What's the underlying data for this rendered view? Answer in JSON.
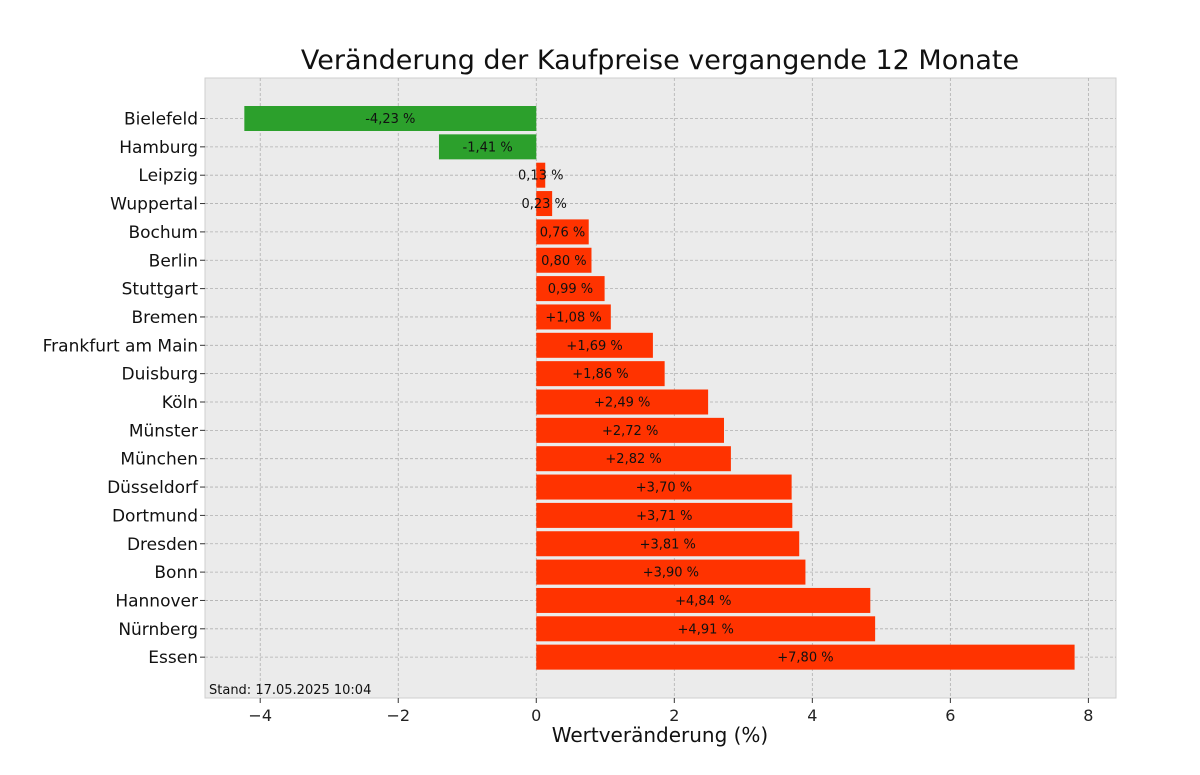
{
  "chart_data": {
    "type": "bar",
    "orientation": "horizontal",
    "title": "Veränderung der Kaufpreise vergangende 12 Monate",
    "xlabel": "Wertveränderung (%)",
    "ylabel": "",
    "xlim": [
      -4.8,
      8.4
    ],
    "xticks": [
      -4,
      -2,
      0,
      2,
      4,
      6,
      8
    ],
    "xtick_labels": [
      "−4",
      "−2",
      "0",
      "2",
      "4",
      "6",
      "8"
    ],
    "grid": true,
    "note": "Stand: 17.05.2025 10:04",
    "colors": {
      "negative": "#2ca02c",
      "positive": "#ff3300",
      "background": "#ebebeb"
    },
    "categories": [
      "Bielefeld",
      "Hamburg",
      "Leipzig",
      "Wuppertal",
      "Bochum",
      "Berlin",
      "Stuttgart",
      "Bremen",
      "Frankfurt am Main",
      "Duisburg",
      "Köln",
      "Münster",
      "München",
      "Düsseldorf",
      "Dortmund",
      "Dresden",
      "Bonn",
      "Hannover",
      "Nürnberg",
      "Essen"
    ],
    "values": [
      -4.23,
      -1.41,
      0.13,
      0.23,
      0.76,
      0.8,
      0.99,
      1.08,
      1.69,
      1.86,
      2.49,
      2.72,
      2.82,
      3.7,
      3.71,
      3.81,
      3.9,
      4.84,
      4.91,
      7.8
    ],
    "labels": [
      "-4,23 %",
      "-1,41 %",
      "0,13 %",
      "0,23 %",
      "0,76 %",
      "0,80 %",
      "0,99 %",
      "+1,08 %",
      "+1,69 %",
      "+1,86 %",
      "+2,49 %",
      "+2,72 %",
      "+2,82 %",
      "+3,70 %",
      "+3,71 %",
      "+3,81 %",
      "+3,90 %",
      "+4,84 %",
      "+4,91 %",
      "+7,80 %"
    ]
  }
}
